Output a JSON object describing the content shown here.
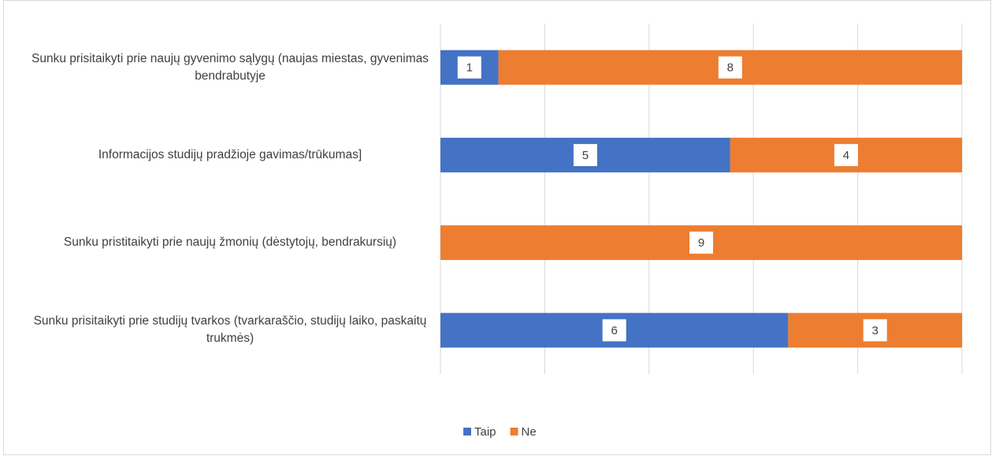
{
  "chart_data": {
    "type": "stacked-bar-horizontal",
    "categories": [
      "Sunku prisitaikyti prie naujų gyvenimo sąlygų (naujas miestas, gyvenimas bendrabutyje",
      "Informacijos studijų pradžioje gavimas/trūkumas]",
      "Sunku pristitaikyti prie naujų žmonių (dėstytojų, bendrakursių)",
      "Sunku prisitaikyti prie studijų tvarkos (tvarkaraščio, studijų laiko, paskaitų trukmės)"
    ],
    "series": [
      {
        "name": "Taip",
        "color": "#4472c4",
        "values": [
          1,
          5,
          0,
          6
        ]
      },
      {
        "name": "Ne",
        "color": "#ed7d31",
        "values": [
          8,
          4,
          9,
          3
        ]
      }
    ],
    "xlim": [
      0,
      9
    ],
    "xticks": [
      0,
      1.8,
      3.6,
      5.4,
      7.2,
      9
    ],
    "grid": true,
    "tick_labels": false,
    "legend": "bottom"
  }
}
